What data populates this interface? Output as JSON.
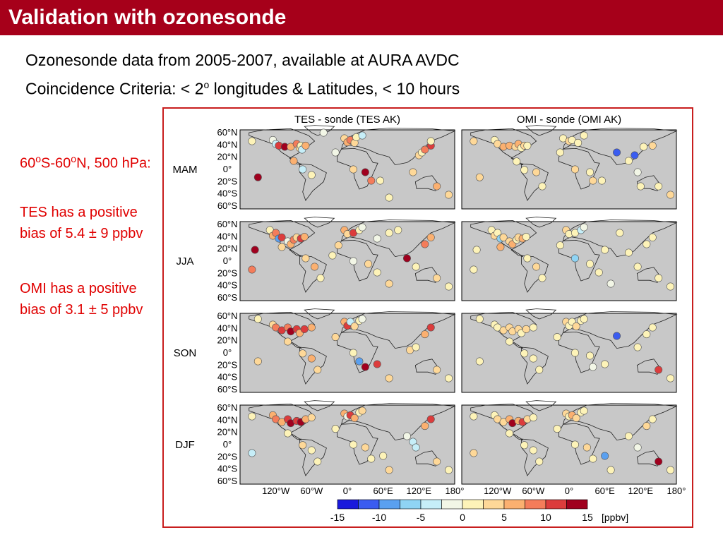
{
  "slide": {
    "title": "Validation with ozonesonde",
    "line1": "Ozonesonde data from 2005-2007, available at AURA AVDC",
    "line2_pre": "Coincidence Criteria: < 2",
    "line2_sup": "o",
    "line2_post": " longitudes & Latitudes, < 10 hours",
    "region_a": "60",
    "region_sup1": "o",
    "region_b": "S-60",
    "region_sup2": "o",
    "region_c": "N, 500 hPa:",
    "tes_text": "TES has a positive bias of 5.4 ± 9 ppbv",
    "omi_text": "OMI has a positive bias of 3.1 ± 5 ppbv"
  },
  "figure": {
    "col_titles": [
      "TES - sonde (TES AK)",
      "OMI - sonde (OMI AK)"
    ],
    "row_labels": [
      "MAM",
      "JJA",
      "SON",
      "DJF"
    ],
    "lat_ticks": [
      "60°N",
      "40°N",
      "20°N",
      "0°",
      "20°S",
      "40°S",
      "60°S"
    ],
    "lon_ticks": [
      "120°W",
      "60°W",
      "0°",
      "60°E",
      "120°E",
      "180°"
    ],
    "colorbar_ticks": [
      "-15",
      "-10",
      "-5",
      "0",
      "5",
      "10",
      "15"
    ],
    "colorbar_unit": "[ppbv]",
    "colorbar_colors": [
      "#1a1adc",
      "#3a5cf0",
      "#5aa0f0",
      "#8fd4f4",
      "#c6eef8",
      "#f2f6e6",
      "#fdf3b8",
      "#fed898",
      "#fbb070",
      "#f47c5a",
      "#dc3c3c",
      "#a0001e"
    ]
  }
}
